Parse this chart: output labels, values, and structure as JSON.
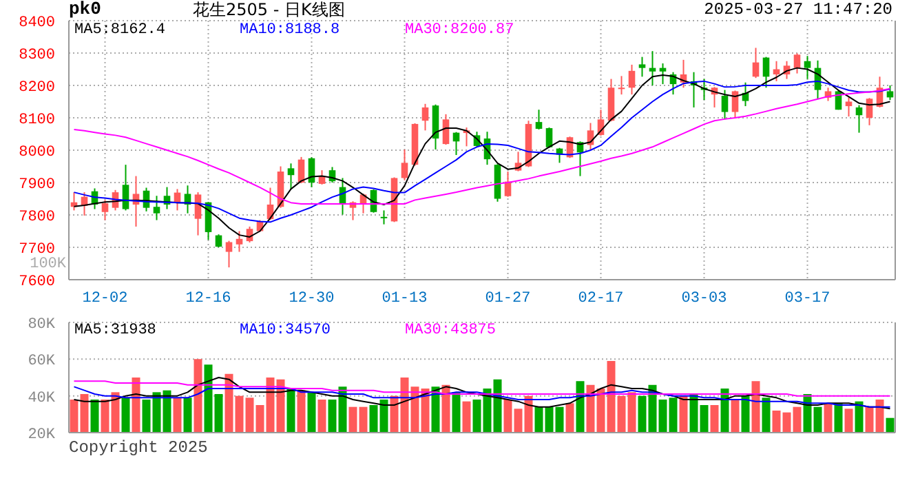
{
  "chart_data": [
    {
      "type": "candlestick",
      "title": "花生2505 - 日K线图",
      "annotations": [
        "pk0",
        "2025-03-27 11:47:20",
        "100K"
      ],
      "categories": [
        null,
        null,
        null,
        "12-02",
        null,
        null,
        null,
        null,
        null,
        null,
        null,
        null,
        null,
        "12-16",
        null,
        null,
        null,
        null,
        null,
        null,
        null,
        null,
        null,
        "12-30",
        null,
        null,
        null,
        null,
        null,
        null,
        null,
        null,
        "01-13",
        null,
        null,
        null,
        null,
        null,
        null,
        null,
        null,
        null,
        "01-27",
        null,
        null,
        null,
        null,
        null,
        null,
        null,
        null,
        "02-17",
        null,
        null,
        null,
        null,
        null,
        null,
        null,
        null,
        null,
        "03-03",
        null,
        null,
        null,
        null,
        null,
        null,
        null,
        null,
        null,
        "03-17",
        null,
        null,
        null,
        null,
        null,
        null,
        null,
        null
      ],
      "ohlc": [
        [
          7825,
          7870,
          7814,
          7839
        ],
        [
          7828,
          7870,
          7798,
          7856
        ],
        [
          7873,
          7882,
          7818,
          7832
        ],
        [
          7809,
          7846,
          7784,
          7836
        ],
        [
          7822,
          7877,
          7814,
          7870
        ],
        [
          7893,
          7955,
          7814,
          7818
        ],
        [
          7832,
          7920,
          7764,
          7865
        ],
        [
          7875,
          7884,
          7811,
          7822
        ],
        [
          7825,
          7859,
          7784,
          7805
        ],
        [
          7859,
          7886,
          7818,
          7832
        ],
        [
          7836,
          7880,
          7814,
          7869
        ],
        [
          7865,
          7891,
          7805,
          7832
        ],
        [
          7788,
          7870,
          7737,
          7863
        ],
        [
          7839,
          7840,
          7723,
          7747
        ],
        [
          7737,
          7740,
          7700,
          7702
        ],
        [
          7686,
          7720,
          7638,
          7716
        ],
        [
          7709,
          7750,
          7686,
          7726
        ],
        [
          7719,
          7764,
          7715,
          7757
        ],
        [
          7750,
          7784,
          7748,
          7780
        ],
        [
          7787,
          7884,
          7784,
          7832
        ],
        [
          7825,
          7950,
          7822,
          7934
        ],
        [
          7944,
          7959,
          7880,
          7923
        ],
        [
          7900,
          7979,
          7898,
          7971
        ],
        [
          7975,
          7978,
          7886,
          7900
        ],
        [
          7896,
          7938,
          7894,
          7920
        ],
        [
          7938,
          7948,
          7900,
          7904
        ],
        [
          7886,
          7914,
          7801,
          7835
        ],
        [
          7822,
          7842,
          7784,
          7839
        ],
        [
          7836,
          7866,
          7805,
          7863
        ],
        [
          7877,
          7879,
          7807,
          7809
        ],
        [
          7794,
          7814,
          7771,
          7790
        ],
        [
          7780,
          7916,
          7778,
          7914
        ],
        [
          7914,
          8002,
          7907,
          7961
        ],
        [
          7955,
          8083,
          7952,
          8081
        ],
        [
          8091,
          8143,
          8061,
          8132
        ],
        [
          8138,
          8141,
          8002,
          8036
        ],
        [
          8019,
          8111,
          8017,
          8095
        ],
        [
          8054,
          8056,
          7985,
          8027
        ],
        [
          8053,
          8070,
          8012,
          8061
        ],
        [
          8046,
          8057,
          8011,
          8013
        ],
        [
          8036,
          8057,
          7955,
          7972
        ],
        [
          7955,
          7957,
          7841,
          7850
        ],
        [
          7858,
          7934,
          7856,
          7903
        ],
        [
          7937,
          7995,
          7935,
          7961
        ],
        [
          7950,
          8091,
          7948,
          8081
        ],
        [
          8087,
          8125,
          8064,
          8066
        ],
        [
          8068,
          8070,
          8007,
          8009
        ],
        [
          8005,
          8007,
          7961,
          7986
        ],
        [
          7978,
          8042,
          7976,
          8040
        ],
        [
          8025,
          8027,
          7920,
          7993
        ],
        [
          8016,
          8084,
          8002,
          8061
        ],
        [
          8047,
          8125,
          8045,
          8095
        ],
        [
          8091,
          8220,
          8089,
          8193
        ],
        [
          8189,
          8229,
          8172,
          8193
        ],
        [
          8193,
          8264,
          8172,
          8245
        ],
        [
          8265,
          8288,
          8227,
          8254
        ],
        [
          8254,
          8306,
          8200,
          8243
        ],
        [
          8254,
          8268,
          8204,
          8243
        ],
        [
          8234,
          8241,
          8172,
          8204
        ],
        [
          8209,
          8279,
          8193,
          8234
        ],
        [
          8213,
          8241,
          8132,
          8200
        ],
        [
          8193,
          8220,
          8155,
          8186
        ],
        [
          8172,
          8195,
          8132,
          8193
        ],
        [
          8168,
          8186,
          8095,
          8118
        ],
        [
          8118,
          8184,
          8100,
          8182
        ],
        [
          8177,
          8209,
          8136,
          8152
        ],
        [
          8227,
          8316,
          8223,
          8271
        ],
        [
          8286,
          8288,
          8193,
          8227
        ],
        [
          8234,
          8275,
          8213,
          8250
        ],
        [
          8234,
          8275,
          8220,
          8261
        ],
        [
          8254,
          8299,
          8237,
          8295
        ],
        [
          8275,
          8291,
          8220,
          8254
        ],
        [
          8254,
          8277,
          8159,
          8186
        ],
        [
          8162,
          8193,
          8152,
          8182
        ],
        [
          8182,
          8184,
          8125,
          8125
        ],
        [
          8136,
          8163,
          8104,
          8150
        ],
        [
          8132,
          8139,
          8054,
          8108
        ],
        [
          8100,
          8161,
          8077,
          8159
        ],
        [
          8134,
          8227,
          8132,
          8193
        ],
        [
          8182,
          8200,
          8155,
          8163
        ]
      ],
      "colors": [
        "#ff5a5a",
        "#ff5a5a",
        "#00a800",
        "#ff5a5a",
        "#ff5a5a",
        "#00a800",
        "#ff5a5a",
        "#00a800",
        "#00a800",
        "#00a800",
        "#ff5a5a",
        "#00a800",
        "#ff5a5a",
        "#00a800",
        "#00a800",
        "#ff5a5a",
        "#ff5a5a",
        "#ff5a5a",
        "#ff5a5a",
        "#ff5a5a",
        "#ff5a5a",
        "#00a800",
        "#ff5a5a",
        "#00a800",
        "#ff5a5a",
        "#00a800",
        "#00a800",
        "#ff5a5a",
        "#ff5a5a",
        "#00a800",
        "#00a800",
        "#ff5a5a",
        "#ff5a5a",
        "#ff5a5a",
        "#ff5a5a",
        "#00a800",
        "#ff5a5a",
        "#00a800",
        "#ff5a5a",
        "#00a800",
        "#00a800",
        "#00a800",
        "#ff5a5a",
        "#ff5a5a",
        "#ff5a5a",
        "#00a800",
        "#00a800",
        "#00a800",
        "#ff5a5a",
        "#00a800",
        "#ff5a5a",
        "#ff5a5a",
        "#ff5a5a",
        "#ff5a5a",
        "#ff5a5a",
        "#00a800",
        "#00a800",
        "#00a800",
        "#00a800",
        "#ff5a5a",
        "#00a800",
        "#00a800",
        "#ff5a5a",
        "#00a800",
        "#ff5a5a",
        "#00a800",
        "#ff5a5a",
        "#00a800",
        "#ff5a5a",
        "#ff5a5a",
        "#ff5a5a",
        "#00a800",
        "#00a800",
        "#ff5a5a",
        "#00a800",
        "#ff5a5a",
        "#00a800",
        "#ff5a5a",
        "#ff5a5a",
        "#00a800"
      ],
      "series": [
        {
          "type": "line",
          "name": "MA5:8162.4",
          "color": "#000000",
          "values": [
            7826,
            7830,
            7835,
            7840,
            7842,
            7845,
            7845,
            7844,
            7842,
            7840,
            7838,
            7837,
            7835,
            7815,
            7790,
            7760,
            7738,
            7732,
            7750,
            7790,
            7835,
            7880,
            7905,
            7918,
            7920,
            7915,
            7905,
            7885,
            7862,
            7840,
            7832,
            7845,
            7890,
            7960,
            8020,
            8055,
            8068,
            8068,
            8060,
            8035,
            8000,
            7960,
            7941,
            7945,
            7965,
            7990,
            8010,
            8028,
            8025,
            8018,
            8025,
            8060,
            8095,
            8120,
            8160,
            8200,
            8227,
            8232,
            8228,
            8215,
            8205,
            8190,
            8180,
            8172,
            8166,
            8175,
            8190,
            8210,
            8225,
            8245,
            8254,
            8250,
            8235,
            8210,
            8185,
            8165,
            8145,
            8140,
            8142,
            8150
          ]
        },
        {
          "type": "line",
          "name": "MA10:8188.8",
          "color": "#0000ff",
          "values": [
            7870,
            7862,
            7855,
            7852,
            7848,
            7845,
            7843,
            7841,
            7840,
            7839,
            7838,
            7837,
            7836,
            7830,
            7820,
            7805,
            7790,
            7784,
            7780,
            7778,
            7790,
            7800,
            7812,
            7824,
            7840,
            7855,
            7866,
            7880,
            7886,
            7882,
            7875,
            7869,
            7869,
            7890,
            7910,
            7930,
            7950,
            7970,
            7995,
            8010,
            8019,
            8018,
            8015,
            8005,
            7995,
            7993,
            7990,
            7988,
            7986,
            7990,
            8000,
            8015,
            8043,
            8070,
            8100,
            8125,
            8150,
            8172,
            8190,
            8206,
            8210,
            8213,
            8205,
            8195,
            8196,
            8200,
            8200,
            8200,
            8200,
            8200,
            8202,
            8210,
            8213,
            8205,
            8195,
            8185,
            8180,
            8180,
            8182,
            8189
          ]
        },
        {
          "type": "line",
          "name": "MA30:8200.87",
          "color": "#ff00ff",
          "values": [
            8064,
            8060,
            8055,
            8050,
            8046,
            8040,
            8030,
            8020,
            8010,
            8000,
            7990,
            7980,
            7968,
            7955,
            7942,
            7930,
            7915,
            7900,
            7885,
            7868,
            7850,
            7838,
            7834,
            7834,
            7834,
            7834,
            7834,
            7834,
            7834,
            7834,
            7834,
            7834,
            7834,
            7846,
            7852,
            7858,
            7864,
            7870,
            7877,
            7884,
            7890,
            7896,
            7900,
            7906,
            7912,
            7920,
            7927,
            7934,
            7942,
            7950,
            7958,
            7966,
            7975,
            7982,
            7990,
            8000,
            8010,
            8024,
            8038,
            8052,
            8066,
            8080,
            8091,
            8096,
            8100,
            8105,
            8112,
            8120,
            8128,
            8135,
            8142,
            8150,
            8158,
            8166,
            8170,
            8174,
            8177,
            8180,
            8184,
            8190
          ]
        }
      ],
      "ylim": [
        7600,
        8400
      ],
      "yticks": [
        7600,
        7700,
        7800,
        7900,
        8000,
        8100,
        8200,
        8300,
        8400
      ],
      "grid": true,
      "legend": "top left"
    },
    {
      "type": "bar",
      "annotations": [
        "Copyright 2025"
      ],
      "categories": [
        null,
        null,
        null,
        null,
        null,
        null,
        null,
        null,
        null,
        null,
        null,
        null,
        null,
        null,
        null,
        null,
        null,
        null,
        null,
        null,
        null,
        null,
        null,
        null,
        null,
        null,
        null,
        null,
        null,
        null,
        null,
        null,
        null,
        null,
        null,
        null,
        null,
        null,
        null,
        null,
        null,
        null,
        null,
        null,
        null,
        null,
        null,
        null,
        null,
        null,
        null,
        null,
        null,
        null,
        null,
        null,
        null,
        null,
        null,
        null,
        null,
        null,
        null,
        null,
        null,
        null,
        null,
        null,
        null,
        null,
        null,
        null,
        null,
        null,
        null,
        null,
        null,
        null,
        null,
        null
      ],
      "series": [
        {
          "type": "bar",
          "values": [
            38000,
            41000,
            38000,
            38000,
            42000,
            39000,
            50000,
            38000,
            42000,
            43000,
            39000,
            39000,
            60000,
            57000,
            41000,
            52000,
            40000,
            39000,
            35000,
            50000,
            49000,
            44000,
            43000,
            42000,
            38000,
            38000,
            45000,
            34000,
            34000,
            35000,
            38000,
            40000,
            50000,
            45000,
            44000,
            45000,
            46000,
            42000,
            37000,
            38000,
            44000,
            49000,
            38000,
            33000,
            40000,
            34000,
            34000,
            34000,
            36000,
            48000,
            46000,
            44000,
            59000,
            40000,
            42000,
            40000,
            46000,
            38000,
            39000,
            40000,
            41000,
            35000,
            35000,
            44000,
            38000,
            40000,
            48000,
            39000,
            32000,
            31000,
            34000,
            41000,
            34000,
            36000,
            36000,
            33000,
            37000,
            34000,
            38000,
            28000
          ],
          "colors": [
            "#ff5a5a",
            "#ff5a5a",
            "#00a800",
            "#ff5a5a",
            "#ff5a5a",
            "#00a800",
            "#ff5a5a",
            "#00a800",
            "#00a800",
            "#00a800",
            "#ff5a5a",
            "#00a800",
            "#ff5a5a",
            "#00a800",
            "#00a800",
            "#ff5a5a",
            "#ff5a5a",
            "#ff5a5a",
            "#ff5a5a",
            "#ff5a5a",
            "#ff5a5a",
            "#00a800",
            "#ff5a5a",
            "#00a800",
            "#ff5a5a",
            "#00a800",
            "#00a800",
            "#ff5a5a",
            "#ff5a5a",
            "#00a800",
            "#00a800",
            "#ff5a5a",
            "#ff5a5a",
            "#ff5a5a",
            "#ff5a5a",
            "#00a800",
            "#ff5a5a",
            "#00a800",
            "#ff5a5a",
            "#00a800",
            "#00a800",
            "#00a800",
            "#ff5a5a",
            "#ff5a5a",
            "#ff5a5a",
            "#00a800",
            "#00a800",
            "#00a800",
            "#ff5a5a",
            "#00a800",
            "#ff5a5a",
            "#ff5a5a",
            "#ff5a5a",
            "#ff5a5a",
            "#ff5a5a",
            "#00a800",
            "#00a800",
            "#00a800",
            "#00a800",
            "#ff5a5a",
            "#00a800",
            "#00a800",
            "#ff5a5a",
            "#00a800",
            "#ff5a5a",
            "#00a800",
            "#ff5a5a",
            "#00a800",
            "#ff5a5a",
            "#ff5a5a",
            "#ff5a5a",
            "#00a800",
            "#00a800",
            "#ff5a5a",
            "#00a800",
            "#ff5a5a",
            "#00a800",
            "#ff5a5a",
            "#ff5a5a",
            "#00a800"
          ]
        },
        {
          "type": "line",
          "name": "MA5:31938",
          "color": "#000000",
          "values": [
            38000,
            37000,
            37000,
            37000,
            38000,
            40000,
            41000,
            40000,
            40000,
            40000,
            40000,
            42000,
            46000,
            48000,
            50000,
            49000,
            45000,
            42000,
            42000,
            42000,
            42000,
            43000,
            43000,
            42000,
            41000,
            40000,
            40000,
            38000,
            37000,
            36000,
            35000,
            35000,
            37000,
            39000,
            41000,
            43000,
            45000,
            44000,
            42000,
            41000,
            40000,
            39000,
            38000,
            37000,
            35000,
            34000,
            34000,
            35000,
            36000,
            39000,
            41000,
            44000,
            46000,
            45000,
            44000,
            44000,
            43000,
            41000,
            40000,
            38000,
            38000,
            38000,
            38000,
            38000,
            40000,
            40000,
            41000,
            40000,
            39000,
            37000,
            36000,
            35000,
            35000,
            36000,
            36000,
            36000,
            35000,
            34000,
            34000,
            33000
          ]
        },
        {
          "type": "line",
          "name": "MA10:34570",
          "color": "#0000ff",
          "values": [
            45000,
            43000,
            41000,
            40000,
            40000,
            39000,
            39000,
            39000,
            39000,
            39000,
            39000,
            39000,
            41000,
            44000,
            44000,
            44000,
            44000,
            44000,
            44000,
            44000,
            44000,
            44000,
            42000,
            42000,
            42000,
            42000,
            41000,
            41000,
            41000,
            39000,
            39000,
            39000,
            39000,
            39000,
            40000,
            41000,
            41000,
            42000,
            42000,
            42000,
            41000,
            40000,
            39000,
            38000,
            38000,
            38000,
            38000,
            39000,
            39000,
            40000,
            40000,
            41000,
            42000,
            42000,
            43000,
            42000,
            42000,
            41000,
            40000,
            40000,
            40000,
            39000,
            39000,
            38000,
            38000,
            38000,
            37000,
            37000,
            37000,
            37000,
            37000,
            36000,
            36000,
            36000,
            35000,
            35000,
            35000,
            34000,
            34000,
            34000
          ]
        },
        {
          "type": "line",
          "name": "MA30:43875",
          "color": "#ff00ff",
          "values": [
            48000,
            48000,
            48000,
            48000,
            47000,
            47000,
            47000,
            47000,
            47000,
            47000,
            47000,
            46000,
            46000,
            46000,
            46000,
            46000,
            45000,
            45000,
            45000,
            45000,
            45000,
            44000,
            44000,
            44000,
            44000,
            43000,
            43000,
            43000,
            43000,
            43000,
            42000,
            42000,
            42000,
            42000,
            42000,
            42000,
            41000,
            41000,
            41000,
            41000,
            41000,
            41000,
            41000,
            41000,
            41000,
            41000,
            41000,
            41000,
            41000,
            41000,
            41000,
            41000,
            41000,
            41000,
            41000,
            41000,
            41000,
            41000,
            41000,
            41000,
            41000,
            41000,
            41000,
            41000,
            41000,
            41000,
            41000,
            41000,
            41000,
            41000,
            40000,
            40000,
            40000,
            40000,
            40000,
            40000,
            40000,
            40000,
            40000,
            40000
          ]
        }
      ],
      "ylim": [
        20000,
        80000
      ],
      "yticks": [
        {
          "value": 20000,
          "label": "20K"
        },
        {
          "value": 40000,
          "label": "40K"
        },
        {
          "value": 60000,
          "label": "60K"
        },
        {
          "value": 80000,
          "label": "80K"
        }
      ],
      "grid": true,
      "legend": "top left",
      "tick_labels": "y"
    }
  ]
}
